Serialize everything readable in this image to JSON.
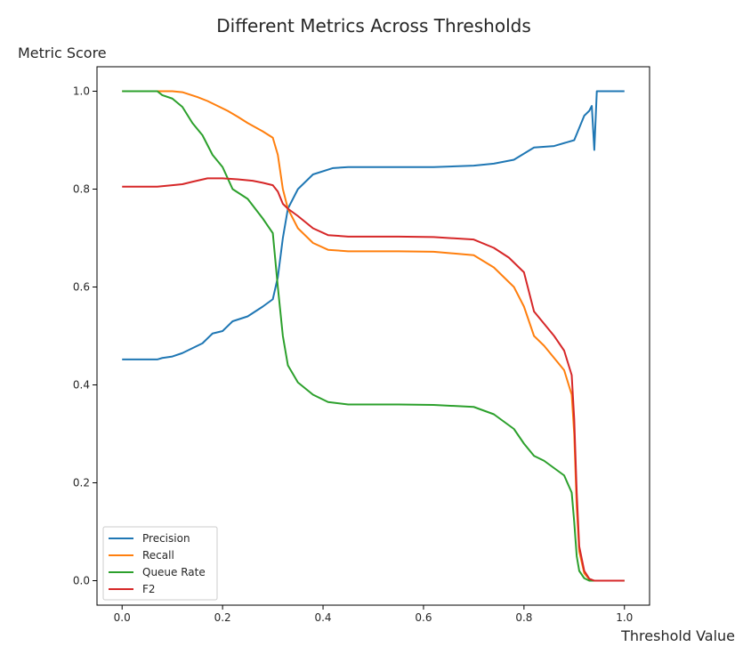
{
  "chart_data": {
    "type": "line",
    "title": "Different Metrics Across Thresholds",
    "xlabel": "Threshold Value",
    "ylabel": "Metric Score",
    "xlim": [
      -0.05,
      1.05
    ],
    "ylim": [
      -0.05,
      1.05
    ],
    "xticks": [
      0.0,
      0.2,
      0.4,
      0.6,
      0.8,
      1.0
    ],
    "xtick_labels": [
      "0.0",
      "0.2",
      "0.4",
      "0.6",
      "0.8",
      "1.0"
    ],
    "yticks": [
      0.0,
      0.2,
      0.4,
      0.6,
      0.8,
      1.0
    ],
    "ytick_labels": [
      "0.0",
      "0.2",
      "0.4",
      "0.6",
      "0.8",
      "1.0"
    ],
    "legend_position": "lower-left",
    "series": [
      {
        "name": "Precision",
        "color": "#1f77b4",
        "x": [
          0.0,
          0.05,
          0.07,
          0.08,
          0.1,
          0.12,
          0.14,
          0.16,
          0.18,
          0.2,
          0.22,
          0.25,
          0.28,
          0.3,
          0.31,
          0.32,
          0.33,
          0.35,
          0.38,
          0.42,
          0.45,
          0.55,
          0.62,
          0.7,
          0.74,
          0.78,
          0.82,
          0.86,
          0.9,
          0.92,
          0.93,
          0.935,
          0.94,
          0.945,
          0.95,
          1.0
        ],
        "values": [
          0.452,
          0.452,
          0.452,
          0.455,
          0.458,
          0.465,
          0.475,
          0.485,
          0.505,
          0.51,
          0.53,
          0.54,
          0.56,
          0.575,
          0.62,
          0.7,
          0.76,
          0.8,
          0.83,
          0.843,
          0.845,
          0.845,
          0.845,
          0.848,
          0.852,
          0.86,
          0.885,
          0.888,
          0.9,
          0.95,
          0.96,
          0.97,
          0.88,
          1.0,
          1.0,
          1.0
        ]
      },
      {
        "name": "Recall",
        "color": "#ff7f0e",
        "x": [
          0.0,
          0.1,
          0.12,
          0.15,
          0.17,
          0.19,
          0.21,
          0.23,
          0.25,
          0.28,
          0.3,
          0.31,
          0.32,
          0.33,
          0.35,
          0.38,
          0.41,
          0.45,
          0.55,
          0.62,
          0.7,
          0.74,
          0.78,
          0.8,
          0.82,
          0.84,
          0.86,
          0.88,
          0.895,
          0.9,
          0.905,
          0.91,
          0.92,
          0.93,
          0.94,
          1.0
        ],
        "values": [
          1.0,
          1.0,
          0.998,
          0.988,
          0.98,
          0.97,
          0.96,
          0.948,
          0.935,
          0.918,
          0.905,
          0.87,
          0.8,
          0.76,
          0.72,
          0.69,
          0.676,
          0.673,
          0.673,
          0.672,
          0.665,
          0.64,
          0.6,
          0.56,
          0.5,
          0.48,
          0.455,
          0.43,
          0.38,
          0.3,
          0.15,
          0.06,
          0.015,
          0.003,
          0.0,
          0.0
        ]
      },
      {
        "name": "Queue Rate",
        "color": "#2ca02c",
        "x": [
          0.0,
          0.07,
          0.08,
          0.1,
          0.12,
          0.14,
          0.16,
          0.18,
          0.2,
          0.22,
          0.25,
          0.28,
          0.3,
          0.31,
          0.32,
          0.33,
          0.35,
          0.38,
          0.41,
          0.45,
          0.55,
          0.62,
          0.7,
          0.74,
          0.78,
          0.8,
          0.82,
          0.84,
          0.86,
          0.88,
          0.895,
          0.9,
          0.905,
          0.91,
          0.92,
          0.93,
          1.0
        ],
        "values": [
          1.0,
          1.0,
          0.992,
          0.985,
          0.968,
          0.935,
          0.91,
          0.87,
          0.845,
          0.8,
          0.78,
          0.74,
          0.71,
          0.6,
          0.5,
          0.44,
          0.405,
          0.38,
          0.365,
          0.36,
          0.36,
          0.359,
          0.355,
          0.34,
          0.31,
          0.28,
          0.255,
          0.245,
          0.23,
          0.215,
          0.18,
          0.12,
          0.05,
          0.02,
          0.005,
          0.0,
          0.0
        ]
      },
      {
        "name": "F2",
        "color": "#d62728",
        "x": [
          0.0,
          0.07,
          0.1,
          0.12,
          0.14,
          0.17,
          0.2,
          0.23,
          0.26,
          0.28,
          0.3,
          0.31,
          0.32,
          0.33,
          0.35,
          0.38,
          0.41,
          0.45,
          0.55,
          0.62,
          0.7,
          0.74,
          0.77,
          0.8,
          0.82,
          0.84,
          0.86,
          0.88,
          0.895,
          0.9,
          0.905,
          0.91,
          0.92,
          0.93,
          0.94,
          1.0
        ],
        "values": [
          0.805,
          0.805,
          0.808,
          0.81,
          0.815,
          0.822,
          0.822,
          0.82,
          0.817,
          0.813,
          0.808,
          0.795,
          0.77,
          0.76,
          0.745,
          0.72,
          0.706,
          0.703,
          0.703,
          0.702,
          0.697,
          0.68,
          0.66,
          0.63,
          0.55,
          0.525,
          0.5,
          0.47,
          0.42,
          0.33,
          0.18,
          0.07,
          0.02,
          0.004,
          0.0,
          0.0
        ]
      }
    ]
  }
}
